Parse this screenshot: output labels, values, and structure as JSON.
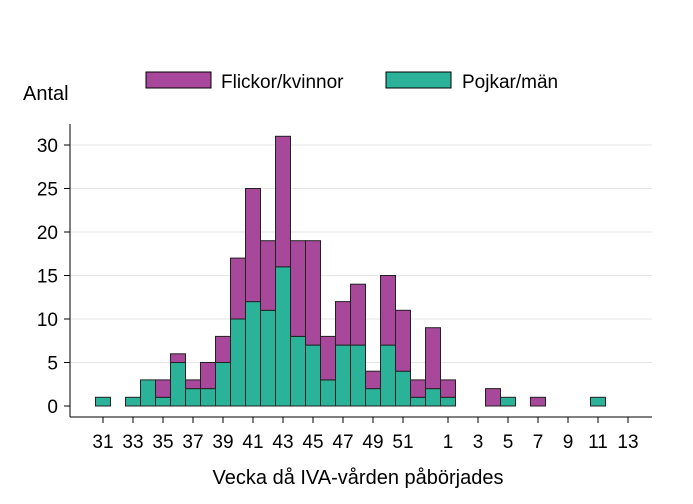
{
  "chart_data": {
    "type": "bar",
    "stacked": true,
    "xlabel": "Vecka då IVA-vården påbörjades",
    "ylabel": "Antal",
    "ylim": [
      0,
      32
    ],
    "yticks": [
      0,
      5,
      10,
      15,
      20,
      25,
      30
    ],
    "categories": [
      "31",
      "32",
      "33",
      "34",
      "35",
      "36",
      "37",
      "38",
      "39",
      "40",
      "41",
      "42",
      "43",
      "44",
      "45",
      "46",
      "47",
      "48",
      "49",
      "50",
      "51",
      "52",
      "53",
      "1",
      "2",
      "3",
      "4",
      "5",
      "6",
      "7",
      "8",
      "9",
      "10",
      "11",
      "12",
      "13"
    ],
    "xtick_labels": [
      "31",
      "33",
      "35",
      "37",
      "39",
      "41",
      "43",
      "45",
      "47",
      "49",
      "51",
      "1",
      "3",
      "5",
      "7",
      "9",
      "11",
      "13"
    ],
    "grid": true,
    "legend_position": "top",
    "series": [
      {
        "name": "Pojkar/män",
        "color": "#2bb39a",
        "values": [
          1,
          0,
          1,
          3,
          1,
          5,
          2,
          2,
          5,
          10,
          12,
          11,
          16,
          8,
          7,
          3,
          7,
          7,
          2,
          7,
          4,
          1,
          2,
          1,
          0,
          0,
          0,
          1,
          0,
          0,
          0,
          0,
          0,
          1,
          0,
          0
        ]
      },
      {
        "name": "Flickor/kvinnor",
        "color": "#a8489b",
        "values": [
          0,
          0,
          0,
          0,
          2,
          1,
          1,
          3,
          3,
          7,
          13,
          8,
          15,
          11,
          12,
          5,
          5,
          7,
          2,
          8,
          7,
          2,
          7,
          2,
          0,
          0,
          2,
          0,
          0,
          1,
          0,
          0,
          0,
          0,
          0,
          0
        ]
      }
    ]
  }
}
